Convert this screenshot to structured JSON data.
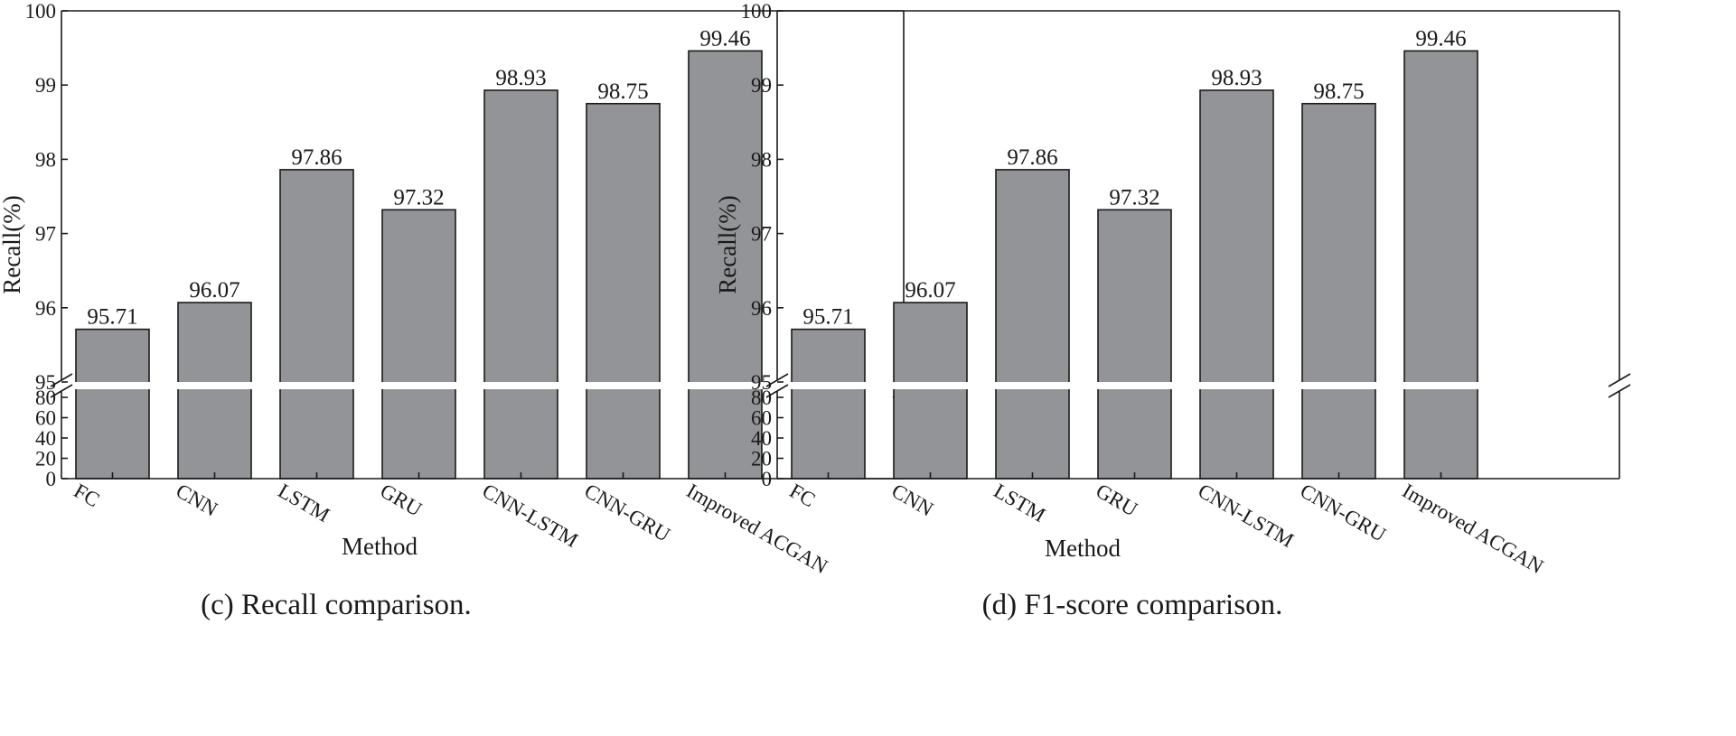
{
  "chart_data": [
    {
      "type": "bar",
      "panel": "left",
      "caption": "(c) Recall comparison.",
      "xlabel": "Method",
      "ylabel": "Recall(%)",
      "categories": [
        "FC",
        "CNN",
        "LSTM",
        "GRU",
        "CNN-LSTM",
        "CNN-GRU",
        "Improved ACGAN"
      ],
      "values": [
        95.71,
        96.07,
        97.86,
        97.32,
        98.93,
        98.75,
        99.46
      ],
      "value_labels": [
        "95.71",
        "96.07",
        "97.86",
        "97.32",
        "98.93",
        "98.75",
        "99.46"
      ],
      "ylim_upper": [
        95,
        100
      ],
      "ylim_lower": [
        0,
        80
      ],
      "yticks_upper": [
        "95",
        "96",
        "97",
        "98",
        "99",
        "100"
      ],
      "yticks_lower": [
        "0",
        "20",
        "40",
        "60",
        "80"
      ],
      "axis_break": true,
      "bar_color": "#939497",
      "grid": false
    },
    {
      "type": "bar",
      "panel": "right",
      "caption": "(d) F1-score comparison.",
      "xlabel": "Method",
      "ylabel": "Recall(%)",
      "categories": [
        "FC",
        "CNN",
        "LSTM",
        "GRU",
        "CNN-LSTM",
        "CNN-GRU",
        "Improved ACGAN"
      ],
      "values": [
        95.71,
        96.07,
        97.86,
        97.32,
        98.93,
        98.75,
        99.46
      ],
      "value_labels": [
        "95.71",
        "96.07",
        "97.86",
        "97.32",
        "98.93",
        "98.75",
        "99.46"
      ],
      "ylim_upper": [
        95,
        100
      ],
      "ylim_lower": [
        0,
        80
      ],
      "yticks_upper": [
        "95",
        "96",
        "97",
        "98",
        "99",
        "100"
      ],
      "yticks_lower": [
        "0",
        "20",
        "40",
        "60",
        "80"
      ],
      "axis_break": true,
      "bar_color": "#939497",
      "grid": false
    }
  ]
}
